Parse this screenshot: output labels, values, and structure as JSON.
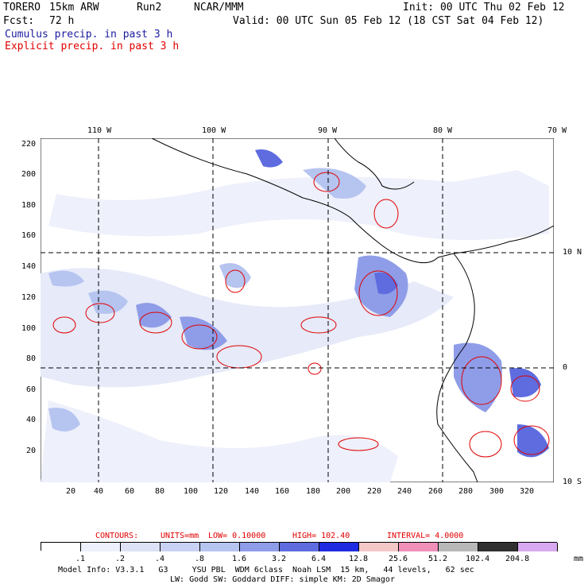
{
  "header": {
    "model": "TORERO",
    "grid": "15km ARW",
    "run": "Run2",
    "org": "NCAR/MMM",
    "init": "Init: 00 UTC Thu 02 Feb 12",
    "fcst_label": "Fcst:",
    "fcst_value": "72 h",
    "valid": "Valid: 00 UTC Sun 05 Feb 12 (18 CST Sat 04 Feb 12)",
    "cumulus": "Cumulus precip. in past 3 h",
    "explicit": "Explicit precip. in past 3 h"
  },
  "axes": {
    "top_lon": [
      "110 W",
      "100 W",
      "90 W",
      "80 W",
      "70 W"
    ],
    "right_lat": [
      "10 N",
      "0",
      "10 S"
    ],
    "left_y": [
      "220",
      "200",
      "180",
      "160",
      "140",
      "120",
      "100",
      "80",
      "60",
      "40",
      "20"
    ],
    "bottom_x": [
      "20",
      "40",
      "60",
      "80",
      "100",
      "120",
      "140",
      "160",
      "180",
      "200",
      "220",
      "240",
      "260",
      "280",
      "300",
      "320"
    ]
  },
  "contours": {
    "label": "CONTOURS:",
    "units": "UNITS=mm",
    "low": "LOW= 0.10000",
    "high": "HIGH= 102.40",
    "interval": "INTERVAL= 4.0000"
  },
  "legend": {
    "values": [
      ".1",
      ".2",
      ".4",
      ".8",
      "1.6",
      "3.2",
      "6.4",
      "12.8",
      "25.6",
      "51.2",
      "102.4",
      "204.8"
    ],
    "unit": "mm",
    "colors": [
      "#ffffff",
      "#eef0fb",
      "#dde2f7",
      "#c9d2f4",
      "#b6c4f0",
      "#8f9de8",
      "#5e6ce0",
      "#1e2be0",
      "#f5c8c8",
      "#f090b8",
      "#b8b8b8",
      "#303030",
      "#d8a8f0"
    ]
  },
  "footer": {
    "line1": "Model Info: V3.3.1   G3     YSU PBL  WDM 6class  Noah LSM  15 km,   44 levels,   62 sec",
    "line2": "LW: Godd SW: Goddard DIFF: simple KM: 2D Smagor"
  }
}
